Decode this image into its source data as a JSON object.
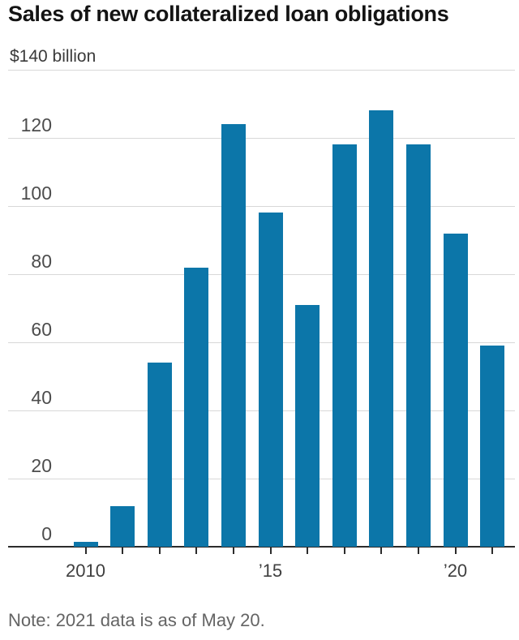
{
  "page": {
    "title": "Sales of new collateralized loan obligations",
    "unit_label": "$140 billion",
    "note": "Note: 2021 data is as of May 20."
  },
  "colors": {
    "bar": "#0c76a9",
    "gridline": "#d8d8d8",
    "axis": "#2b2b2b",
    "title_text": "#141414",
    "y_tick_text": "#4d4d4d",
    "x_tick_text": "#3f3f3f",
    "note_text": "#646464"
  },
  "chart_data": {
    "type": "bar",
    "title": "Sales of new collateralized loan obligations",
    "ylabel": "$ billion",
    "unit_top_label": "$140 billion",
    "categories": [
      "2010",
      "2011",
      "2012",
      "2013",
      "2014",
      "2015",
      "2016",
      "2017",
      "2018",
      "2019",
      "2020",
      "2021"
    ],
    "values": [
      1.5,
      12,
      54,
      82,
      124,
      98,
      71,
      118,
      128,
      118,
      92,
      59
    ],
    "x_tick_labels": [
      "2010",
      "",
      "",
      "",
      "",
      "’15",
      "",
      "",
      "",
      "",
      "’20",
      ""
    ],
    "yticks": [
      0,
      20,
      40,
      60,
      80,
      100,
      120,
      140
    ],
    "ylim": [
      0,
      140
    ],
    "grid": true,
    "legend": false,
    "note": "Note: 2021 data is as of May 20."
  }
}
